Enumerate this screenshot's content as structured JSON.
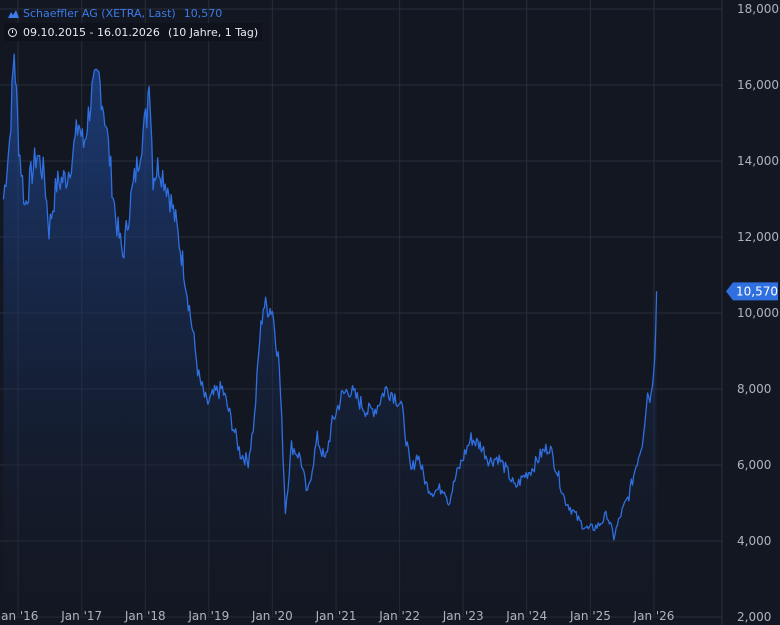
{
  "legend": {
    "instrument": "Schaeffler AG (XETRA, Last)",
    "last_value": "10,570",
    "range": "09.10.2015 - 16.01.2026",
    "interval": "(10 Jahre, 1 Tag)"
  },
  "colors": {
    "background": "#131722",
    "line": "#2f6fe0",
    "grid": "#2a2e39",
    "label_bg": "#2f6fe0"
  },
  "chart_data": {
    "type": "area",
    "x_tick_labels": [
      "Jan '16",
      "Jan '17",
      "Jan '18",
      "Jan '19",
      "Jan '20",
      "Jan '21",
      "Jan '22",
      "Jan '23",
      "Jan '24",
      "Jan '25",
      "Jan '26"
    ],
    "y_tick_labels": [
      "2,000",
      "4,000",
      "6,000",
      "8,000",
      "10,000",
      "12,000",
      "14,000",
      "16,000",
      "18,000"
    ],
    "ylim": [
      2000,
      18000
    ],
    "xlim": [
      "2015-10-09",
      "2026-01-16"
    ],
    "grid": true,
    "last_price_label": "10,570",
    "series": [
      {
        "x": [
          "2015-10-09",
          "2015-11-15",
          "2015-12-10",
          "2016-01-05",
          "2016-02-10",
          "2016-03-15",
          "2016-04-20",
          "2016-06-01",
          "2016-06-27",
          "2016-08-10",
          "2016-10-10",
          "2016-11-10",
          "2016-12-15",
          "2017-01-12",
          "2017-03-01",
          "2017-04-10",
          "2017-05-20",
          "2017-07-15",
          "2017-08-25",
          "2017-10-10",
          "2017-11-20",
          "2017-12-20",
          "2018-01-10",
          "2018-01-23",
          "2018-02-15",
          "2018-03-20",
          "2018-05-10",
          "2018-06-25",
          "2018-08-10",
          "2018-10-01",
          "2018-11-05",
          "2018-12-20",
          "2019-02-10",
          "2019-03-20",
          "2019-05-15",
          "2019-07-01",
          "2019-08-15",
          "2019-09-20",
          "2019-10-20",
          "2019-11-10",
          "2020-01-01",
          "2020-02-10",
          "2020-03-16",
          "2020-04-20",
          "2020-06-10",
          "2020-07-20",
          "2020-09-15",
          "2020-10-30",
          "2020-12-10",
          "2021-02-01",
          "2021-03-15",
          "2021-05-10",
          "2021-07-01",
          "2021-08-20",
          "2021-10-10",
          "2021-11-20",
          "2022-01-10",
          "2022-03-07",
          "2022-04-15",
          "2022-06-01",
          "2022-07-05",
          "2022-09-15",
          "2022-10-10",
          "2022-11-20",
          "2023-01-10",
          "2023-02-15",
          "2023-04-15",
          "2023-06-01",
          "2023-07-20",
          "2023-09-15",
          "2023-10-25",
          "2023-12-15",
          "2024-02-01",
          "2024-03-25",
          "2024-05-10",
          "2024-06-20",
          "2024-08-05",
          "2024-09-20",
          "2024-11-01",
          "2024-12-20",
          "2025-02-15",
          "2025-04-07",
          "2025-05-15",
          "2025-06-25",
          "2025-08-10",
          "2025-09-20",
          "2025-10-25",
          "2025-11-25",
          "2025-12-15",
          "2026-01-05",
          "2026-01-16"
        ],
        "values": [
          13000,
          14600,
          16900,
          14500,
          12800,
          13600,
          14200,
          13600,
          12200,
          13400,
          13600,
          14200,
          15000,
          14400,
          15800,
          16200,
          15000,
          12500,
          11500,
          13000,
          14000,
          14800,
          15200,
          16400,
          13600,
          13900,
          13300,
          12400,
          11200,
          9500,
          8300,
          7600,
          7900,
          8000,
          7100,
          6300,
          6100,
          7200,
          9300,
          10200,
          10100,
          8600,
          4800,
          6500,
          6200,
          5200,
          6700,
          6100,
          7100,
          7800,
          8000,
          7700,
          7400,
          7500,
          8000,
          7900,
          7600,
          5800,
          6300,
          5500,
          5300,
          5400,
          5000,
          5700,
          6300,
          6700,
          6500,
          6100,
          6200,
          5800,
          5400,
          5700,
          5900,
          6300,
          6500,
          5900,
          5100,
          4800,
          4500,
          4300,
          4400,
          4700,
          4100,
          4700,
          5200,
          6000,
          6600,
          7900,
          7800,
          9000,
          10570
        ]
      }
    ]
  }
}
